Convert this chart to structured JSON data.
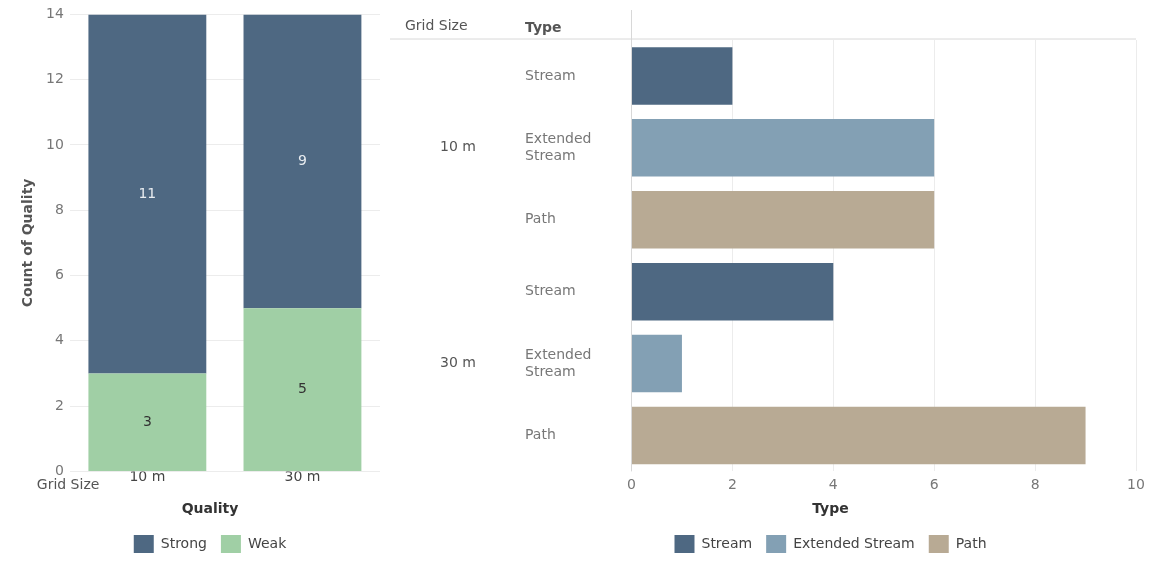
{
  "chart_data": [
    {
      "type": "bar",
      "stacked": true,
      "categories": [
        "10 m",
        "30 m"
      ],
      "xlabel": "Grid Size",
      "ylabel": "Count of Quality",
      "legend_title": "Quality",
      "legend": "bottom",
      "data_labels": true,
      "grid": "y",
      "ylim": [
        0,
        14
      ],
      "yticks": [
        0,
        2,
        4,
        6,
        8,
        10,
        12,
        14
      ],
      "series": [
        {
          "name": "Weak",
          "color": "#a0cfa5",
          "values": [
            3,
            5
          ]
        },
        {
          "name": "Strong",
          "color": "#4e6882",
          "values": [
            11,
            9
          ]
        }
      ]
    },
    {
      "type": "bar",
      "orientation": "horizontal",
      "stacked": true,
      "categories": [
        "Stream",
        "Extended Stream",
        "Path",
        "Stream",
        "Extended Stream",
        "Path"
      ],
      "ylabel": "Type",
      "legend_title": "Type",
      "legend": "bottom",
      "grid": "x",
      "xlim": [
        0,
        10
      ],
      "xticks": [
        0,
        2,
        4,
        6,
        8,
        10
      ],
      "annotations": [
        "Grid Size",
        "10 m",
        "30 m"
      ],
      "series": [
        {
          "name": "Stream",
          "color": "#4e6882",
          "values": [
            2,
            null,
            null,
            4,
            null,
            null
          ]
        },
        {
          "name": "Extended Stream",
          "color": "#83a0b4",
          "values": [
            null,
            6,
            null,
            null,
            1,
            null
          ]
        },
        {
          "name": "Path",
          "color": "#b8aa94",
          "values": [
            null,
            null,
            6,
            null,
            null,
            9
          ]
        }
      ]
    }
  ]
}
